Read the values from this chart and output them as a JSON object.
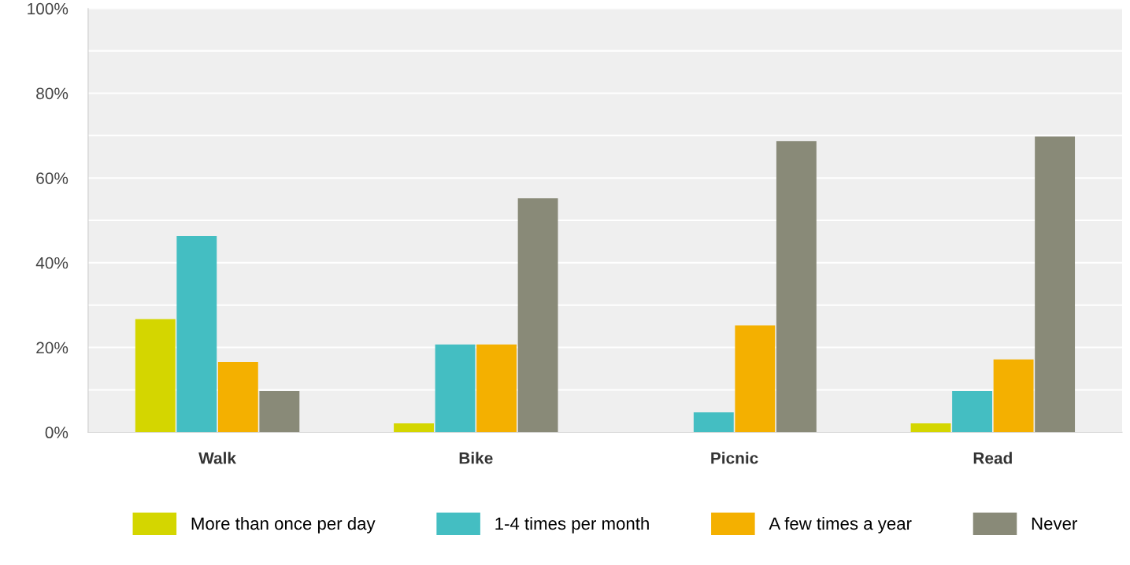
{
  "chart_data": {
    "type": "bar",
    "categories": [
      "Walk",
      "Bike",
      "Picnic",
      "Read"
    ],
    "series": [
      {
        "name": "More than once per day",
        "color": "#d4d600",
        "values": [
          26.7,
          2.1,
          0,
          2.1
        ]
      },
      {
        "name": "1-4 times per month",
        "color": "#44bec2",
        "values": [
          46.3,
          20.7,
          4.7,
          9.7
        ]
      },
      {
        "name": "A few times a year",
        "color": "#f4b000",
        "values": [
          16.6,
          20.7,
          25.2,
          17.2
        ]
      },
      {
        "name": "Never",
        "color": "#898a78",
        "values": [
          9.7,
          55.2,
          68.7,
          69.8
        ]
      }
    ],
    "ylim": [
      0,
      100
    ],
    "yticks": [
      {
        "value": 0,
        "label": "0%"
      },
      {
        "value": 10,
        "label": null
      },
      {
        "value": 20,
        "label": "20%"
      },
      {
        "value": 30,
        "label": null
      },
      {
        "value": 40,
        "label": "40%"
      },
      {
        "value": 50,
        "label": null
      },
      {
        "value": 60,
        "label": "60%"
      },
      {
        "value": 70,
        "label": null
      },
      {
        "value": 80,
        "label": "80%"
      },
      {
        "value": 90,
        "label": null
      },
      {
        "value": 100,
        "label": "100%"
      }
    ],
    "grid": "y",
    "legend": "bottom"
  }
}
